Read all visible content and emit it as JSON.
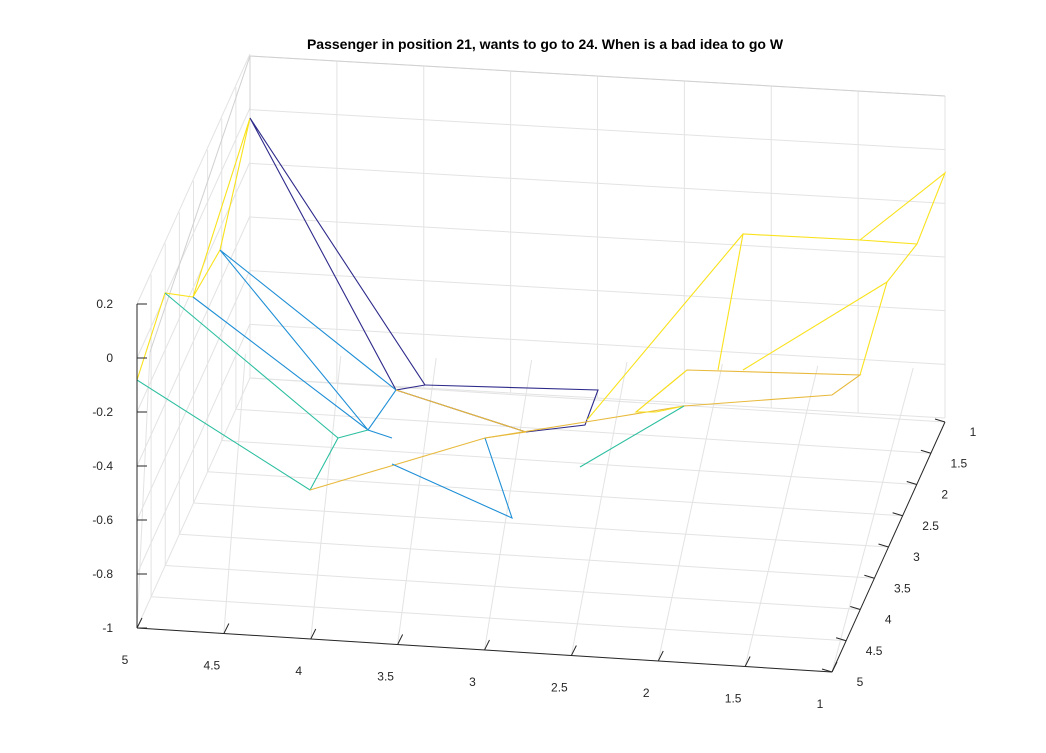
{
  "chart_data": {
    "type": "surface",
    "title": "Passenger in position 21, wants to go to 24. When is a bad idea to go W",
    "xlabel": "",
    "ylabel": "",
    "zlabel": "",
    "x_ticks": [
      "5",
      "4.5",
      "4",
      "3.5",
      "3",
      "2.5",
      "2",
      "1.5",
      "1"
    ],
    "y_ticks": [
      "1",
      "1.5",
      "2",
      "2.5",
      "3",
      "3.5",
      "4",
      "4.5",
      "5"
    ],
    "z_ticks": [
      "0.2",
      "0",
      "-0.2",
      "-0.4",
      "-0.6",
      "-0.8",
      "-1"
    ],
    "xlim": [
      1,
      5
    ],
    "ylim": [
      1,
      5
    ],
    "zlim": [
      -1,
      0.2
    ],
    "grid": true,
    "colormap": "parula",
    "style": "wireframe mesh"
  }
}
